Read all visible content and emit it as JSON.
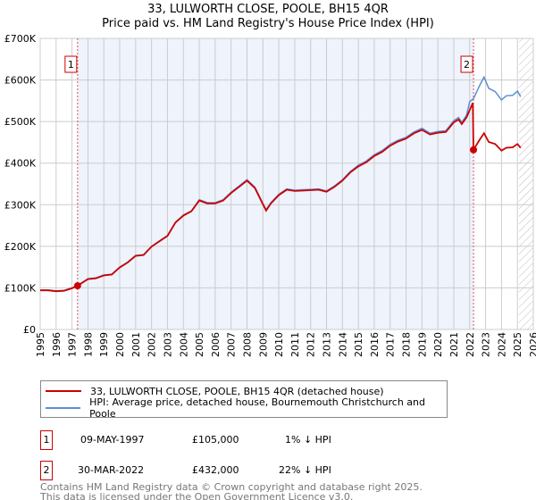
{
  "chart_data": {
    "type": "line",
    "title": "33, LULWORTH CLOSE, POOLE, BH15 4QR",
    "subtitle": "Price paid vs. HM Land Registry's House Price Index (HPI)",
    "xlim": [
      1995,
      2026
    ],
    "ylim": [
      0,
      700000
    ],
    "x_ticks": [
      "1995",
      "1996",
      "1997",
      "1998",
      "1999",
      "2000",
      "2001",
      "2002",
      "2003",
      "2004",
      "2005",
      "2006",
      "2007",
      "2008",
      "2009",
      "2010",
      "2011",
      "2012",
      "2013",
      "2014",
      "2015",
      "2016",
      "2017",
      "2018",
      "2019",
      "2020",
      "2021",
      "2022",
      "2023",
      "2024",
      "2025",
      "2026"
    ],
    "y_ticks": [
      {
        "v": 0,
        "label": "£0"
      },
      {
        "v": 100000,
        "label": "£100K"
      },
      {
        "v": 200000,
        "label": "£200K"
      },
      {
        "v": 300000,
        "label": "£300K"
      },
      {
        "v": 400000,
        "label": "£400K"
      },
      {
        "v": 500000,
        "label": "£500K"
      },
      {
        "v": 600000,
        "label": "£600K"
      },
      {
        "v": 700000,
        "label": "£700K"
      }
    ],
    "grid": true,
    "shaded_period": [
      1997.35,
      2022.24
    ],
    "forecast_hatch_from": 2025.1,
    "series": [
      {
        "name": "HPI: Average price, detached house, Bournemouth Christchurch and Poole",
        "color": "#5b8fd4",
        "x": [
          1995,
          1995.5,
          1996,
          1996.5,
          1997,
          1997.35,
          1998,
          1998.5,
          1999,
          1999.5,
          2000,
          2000.5,
          2001,
          2001.5,
          2002,
          2002.5,
          2003,
          2003.5,
          2004,
          2004.5,
          2005,
          2005.5,
          2006,
          2006.5,
          2007,
          2007.5,
          2008,
          2008.5,
          2009,
          2009.2,
          2009.5,
          2010,
          2010.5,
          2011,
          2011.5,
          2012,
          2012.5,
          2013,
          2013.5,
          2014,
          2014.5,
          2015,
          2015.5,
          2016,
          2016.5,
          2017,
          2017.5,
          2018,
          2018.5,
          2019,
          2019.5,
          2020,
          2020.5,
          2021,
          2021.3,
          2021.5,
          2021.8,
          2022,
          2022.24,
          2022.6,
          2022.9,
          2023.2,
          2023.6,
          2024,
          2024.3,
          2024.7,
          2025,
          2025.2
        ],
        "y": [
          95000,
          95000,
          93000,
          94000,
          100000,
          106000,
          122000,
          124000,
          131000,
          133000,
          150000,
          162000,
          178000,
          180000,
          200000,
          213000,
          226000,
          258000,
          275000,
          285000,
          312000,
          305000,
          305000,
          312000,
          330000,
          345000,
          360000,
          342000,
          303000,
          288000,
          305000,
          325000,
          338000,
          335000,
          336000,
          337000,
          338000,
          333000,
          345000,
          360000,
          380000,
          395000,
          405000,
          420000,
          430000,
          445000,
          455000,
          462000,
          475000,
          484000,
          472000,
          476000,
          478000,
          502000,
          510000,
          498000,
          515000,
          548000,
          555000,
          585000,
          607000,
          580000,
          572000,
          552000,
          562000,
          563000,
          573000,
          560000
        ]
      },
      {
        "name": "33, LULWORTH CLOSE, POOLE, BH15 4QR (detached house)",
        "color": "#cc0000",
        "x": [
          1995,
          1995.5,
          1996,
          1996.5,
          1997,
          1997.35,
          1998,
          1998.5,
          1999,
          1999.5,
          2000,
          2000.5,
          2001,
          2001.5,
          2002,
          2002.5,
          2003,
          2003.5,
          2004,
          2004.5,
          2005,
          2005.5,
          2006,
          2006.5,
          2007,
          2007.5,
          2008,
          2008.5,
          2009,
          2009.2,
          2009.5,
          2010,
          2010.5,
          2011,
          2011.5,
          2012,
          2012.5,
          2013,
          2013.5,
          2014,
          2014.5,
          2015,
          2015.5,
          2016,
          2016.5,
          2017,
          2017.5,
          2018,
          2018.5,
          2019,
          2019.5,
          2020,
          2020.5,
          2021,
          2021.3,
          2021.5,
          2021.8,
          2022.2,
          2022.24,
          2022.6,
          2022.9,
          2023.2,
          2023.6,
          2024,
          2024.3,
          2024.7,
          2025,
          2025.2
        ],
        "y": [
          94000,
          94000,
          92000,
          93000,
          99000,
          105000,
          121000,
          123000,
          130000,
          132000,
          149000,
          161000,
          177000,
          179000,
          199000,
          212000,
          225000,
          257000,
          274000,
          284000,
          310000,
          303000,
          303000,
          310000,
          328000,
          343000,
          358000,
          340000,
          301000,
          286000,
          303000,
          323000,
          336000,
          333000,
          334000,
          335000,
          336000,
          331000,
          343000,
          358000,
          378000,
          392000,
          402000,
          417000,
          427000,
          442000,
          452000,
          459000,
          472000,
          480000,
          469000,
          473000,
          475000,
          498000,
          505000,
          494000,
          510000,
          545000,
          432000,
          455000,
          472000,
          451000,
          446000,
          430000,
          437000,
          438000,
          446000,
          437000
        ]
      }
    ],
    "sales": [
      {
        "id": "1",
        "x": 1997.35,
        "y": 105000
      },
      {
        "id": "2",
        "x": 2022.24,
        "y": 432000
      }
    ]
  },
  "legend": {
    "property": "33, LULWORTH CLOSE, POOLE, BH15 4QR (detached house)",
    "hpi": "HPI: Average price, detached house, Bournemouth Christchurch and Poole",
    "property_color": "#cc0000",
    "hpi_color": "#5b8fd4"
  },
  "transactions": [
    {
      "id": "1",
      "date": "09-MAY-1997",
      "price": "£105,000",
      "hpi": "1% ↓ HPI"
    },
    {
      "id": "2",
      "date": "30-MAR-2022",
      "price": "£432,000",
      "hpi": "22% ↓ HPI"
    }
  ],
  "footer": {
    "line1": "Contains HM Land Registry data © Crown copyright and database right 2025.",
    "line2": "This data is licensed under the Open Government Licence v3.0."
  }
}
